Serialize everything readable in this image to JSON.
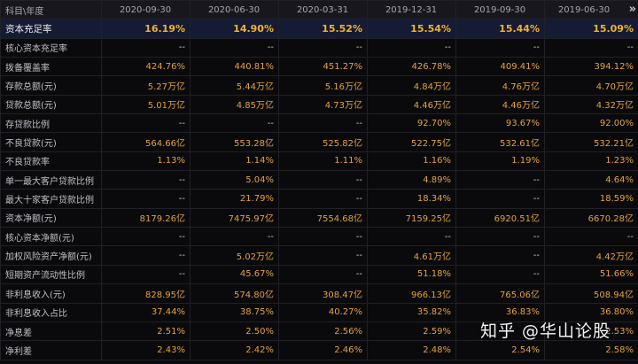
{
  "header": {
    "label": "科目\\年度",
    "dates": [
      "2020-09-30",
      "2020-06-30",
      "2020-03-31",
      "2019-12-31",
      "2019-09-30",
      "2019-06-30"
    ],
    "more_icon": "double-chevron-right-icon",
    "more_glyph": "»"
  },
  "rows": [
    {
      "label": "资本充足率",
      "values": [
        "16.19%",
        "14.90%",
        "15.52%",
        "15.54%",
        "15.44%",
        "15.09%"
      ]
    },
    {
      "label": "核心资本充足率",
      "values": [
        "--",
        "--",
        "--",
        "--",
        "--",
        "--"
      ]
    },
    {
      "label": "拨备覆盖率",
      "values": [
        "424.76%",
        "440.81%",
        "451.27%",
        "426.78%",
        "409.41%",
        "394.12%"
      ]
    },
    {
      "label": "存款总额(元)",
      "values": [
        "5.27万亿",
        "5.44万亿",
        "5.16万亿",
        "4.84万亿",
        "4.76万亿",
        "4.70万亿"
      ]
    },
    {
      "label": "贷款总额(元)",
      "values": [
        "5.01万亿",
        "4.85万亿",
        "4.73万亿",
        "4.46万亿",
        "4.46万亿",
        "4.32万亿"
      ]
    },
    {
      "label": "存贷款比例",
      "values": [
        "--",
        "--",
        "--",
        "92.70%",
        "93.67%",
        "92.00%"
      ]
    },
    {
      "label": "不良贷款(元)",
      "values": [
        "564.66亿",
        "553.28亿",
        "525.82亿",
        "522.75亿",
        "532.61亿",
        "532.21亿"
      ]
    },
    {
      "label": "不良贷款率",
      "values": [
        "1.13%",
        "1.14%",
        "1.11%",
        "1.16%",
        "1.19%",
        "1.23%"
      ]
    },
    {
      "label": "单一最大客户贷款比例",
      "values": [
        "--",
        "5.04%",
        "--",
        "4.89%",
        "--",
        "4.64%"
      ]
    },
    {
      "label": "最大十家客户贷款比例",
      "values": [
        "--",
        "21.79%",
        "--",
        "18.34%",
        "--",
        "18.59%"
      ]
    },
    {
      "label": "资本净额(元)",
      "values": [
        "8179.26亿",
        "7475.97亿",
        "7554.68亿",
        "7159.25亿",
        "6920.51亿",
        "6670.28亿"
      ]
    },
    {
      "label": "核心资本净额(元)",
      "values": [
        "--",
        "--",
        "--",
        "--",
        "--",
        "--"
      ]
    },
    {
      "label": "加权风险资产净额(元)",
      "values": [
        "--",
        "5.02万亿",
        "--",
        "4.61万亿",
        "--",
        "4.42万亿"
      ]
    },
    {
      "label": "短期资产流动性比例",
      "values": [
        "--",
        "45.67%",
        "--",
        "51.18%",
        "--",
        "51.66%"
      ]
    },
    {
      "label": "非利息收入(元)",
      "values": [
        "828.95亿",
        "574.80亿",
        "308.47亿",
        "966.13亿",
        "765.06亿",
        "508.94亿"
      ]
    },
    {
      "label": "非利息收入占比",
      "values": [
        "37.44%",
        "38.75%",
        "40.27%",
        "35.82%",
        "36.83%",
        "36.80%"
      ]
    },
    {
      "label": "净息差",
      "values": [
        "2.51%",
        "2.50%",
        "2.56%",
        "2.59%",
        "",
        "2.53%"
      ]
    },
    {
      "label": "净利差",
      "values": [
        "2.43%",
        "2.42%",
        "2.46%",
        "2.48%",
        "2.54%",
        "2.58%"
      ]
    }
  ],
  "highlight_row": 0,
  "colors": {
    "value": "#e3a23f",
    "label": "#bfbfc6",
    "highlight_bg": "#151b33",
    "bg": "#0a0a0c"
  },
  "watermark": "知乎 @华山论股"
}
